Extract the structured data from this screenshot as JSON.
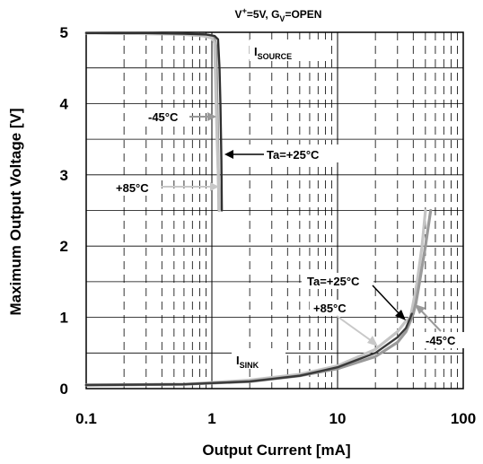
{
  "chart_data": {
    "type": "line",
    "title": {
      "v_main": "V",
      "v_sup": "+",
      "mid": "=5V, G",
      "g_sub": "V",
      "tail": "=OPEN"
    },
    "xlabel": "Output Current [mA]",
    "ylabel": "Maximum Output Voltage [V]",
    "x_scale": "log",
    "xlim": [
      0.1,
      100
    ],
    "ylim": [
      0,
      5
    ],
    "x_ticks": [
      "0.1",
      "1",
      "10",
      "100"
    ],
    "y_ticks": [
      "0",
      "1",
      "2",
      "3",
      "4",
      "5"
    ],
    "grid": true,
    "annotations": {
      "i_source": {
        "main": "I",
        "sub": "SOURCE"
      },
      "i_sink": {
        "main": "I",
        "sub": "SINK"
      },
      "src_m45": "-45°C",
      "src_p25": "Ta=+25°C",
      "src_p85": "+85°C",
      "sink_p25": "Ta=+25°C",
      "sink_p85": "+85°C",
      "sink_m45": "-45°C"
    },
    "series": [
      {
        "group": "source",
        "temp": "-45°C",
        "color": "#9a9a9a",
        "x": [
          0.1,
          0.4,
          0.85,
          1.0,
          1.05,
          1.08,
          1.1,
          1.12,
          1.14
        ],
        "y": [
          4.99,
          4.98,
          4.97,
          4.95,
          4.9,
          4.8,
          4.0,
          3.2,
          2.5
        ]
      },
      {
        "group": "source",
        "temp": "+85°C",
        "color": "#c4c4c4",
        "x": [
          0.1,
          0.4,
          0.6,
          0.85,
          1.0,
          1.05,
          1.1,
          1.15
        ],
        "y": [
          4.99,
          4.98,
          4.97,
          4.95,
          4.92,
          4.85,
          3.5,
          2.5
        ]
      },
      {
        "group": "source",
        "temp": "+25°C",
        "color": "#303030",
        "x": [
          0.1,
          0.3,
          0.6,
          0.9,
          1.05,
          1.12,
          1.15,
          1.17,
          1.19,
          1.2
        ],
        "y": [
          4.99,
          4.99,
          4.98,
          4.97,
          4.95,
          4.9,
          4.5,
          4.0,
          3.2,
          2.5
        ]
      },
      {
        "group": "sink",
        "temp": "+85°C",
        "color": "#c4c4c4",
        "x": [
          0.1,
          0.6,
          2,
          5,
          10,
          20,
          30,
          35,
          38,
          40,
          43,
          47,
          50
        ],
        "y": [
          0.05,
          0.06,
          0.12,
          0.2,
          0.32,
          0.55,
          0.8,
          0.95,
          1.0,
          1.2,
          1.5,
          2.0,
          2.5
        ]
      },
      {
        "group": "sink",
        "temp": "-45°C",
        "color": "#9a9a9a",
        "x": [
          0.1,
          0.6,
          2,
          5,
          10,
          20,
          30,
          35,
          38,
          40,
          42,
          45,
          50,
          55
        ],
        "y": [
          0.05,
          0.06,
          0.1,
          0.18,
          0.28,
          0.45,
          0.65,
          0.8,
          0.95,
          1.05,
          1.2,
          1.5,
          2.0,
          2.5
        ]
      },
      {
        "group": "sink",
        "temp": "+25°C",
        "color": "#3a3a3a",
        "x": [
          0.1,
          0.6,
          2,
          5,
          10,
          20,
          30,
          35,
          37,
          38,
          39
        ],
        "y": [
          0.05,
          0.06,
          0.1,
          0.18,
          0.3,
          0.5,
          0.72,
          0.85,
          0.95,
          1.0,
          1.05
        ]
      }
    ]
  }
}
